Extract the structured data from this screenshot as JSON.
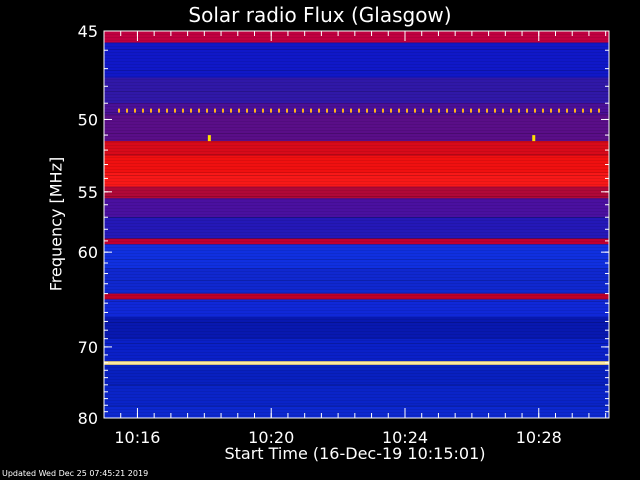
{
  "chart_data": {
    "type": "heatmap",
    "title": "Solar radio Flux (Glasgow)",
    "xlabel": "Start Time (16-Dec-19 10:15:01)",
    "ylabel": "Frequency [MHz]",
    "x_ticks": [
      "10:16",
      "10:20",
      "10:24",
      "10:28"
    ],
    "x_tick_minutes": [
      16,
      20,
      24,
      28
    ],
    "x_range_minutes": [
      15.0,
      30.1
    ],
    "y_ticks": [
      45,
      50,
      55,
      60,
      70,
      80
    ],
    "y_range": [
      45,
      80
    ],
    "y_scale": "reciprocal",
    "bands": [
      {
        "f0": 45.0,
        "f1": 45.6,
        "color": "#c00040"
      },
      {
        "f0": 45.6,
        "f1": 47.5,
        "color": "#1018c8"
      },
      {
        "f0": 47.5,
        "f1": 49.0,
        "color": "#3018a8"
      },
      {
        "f0": 49.0,
        "f1": 49.7,
        "color": "#4a1098"
      },
      {
        "f0": 49.7,
        "f1": 51.4,
        "color": "#5a0e88"
      },
      {
        "f0": 51.4,
        "f1": 52.4,
        "color": "#d80a1a"
      },
      {
        "f0": 52.4,
        "f1": 53.6,
        "color": "#f01010"
      },
      {
        "f0": 53.6,
        "f1": 54.6,
        "color": "#f81818"
      },
      {
        "f0": 54.6,
        "f1": 55.5,
        "color": "#b00838"
      },
      {
        "f0": 55.5,
        "f1": 57.0,
        "color": "#4a10a0"
      },
      {
        "f0": 57.0,
        "f1": 58.8,
        "color": "#2418b8"
      },
      {
        "f0": 58.8,
        "f1": 59.3,
        "color": "#c00030"
      },
      {
        "f0": 59.3,
        "f1": 61.5,
        "color": "#1030e0"
      },
      {
        "f0": 61.5,
        "f1": 64.0,
        "color": "#1028d0"
      },
      {
        "f0": 64.0,
        "f1": 64.6,
        "color": "#c00028"
      },
      {
        "f0": 64.6,
        "f1": 66.5,
        "color": "#1028d8"
      },
      {
        "f0": 66.5,
        "f1": 69.0,
        "color": "#0818b0"
      },
      {
        "f0": 69.0,
        "f1": 71.8,
        "color": "#0a20c8"
      },
      {
        "f0": 71.8,
        "f1": 72.3,
        "color": "#ffe8a0"
      },
      {
        "f0": 72.3,
        "f1": 75.0,
        "color": "#0820c0"
      },
      {
        "f0": 75.0,
        "f1": 78.0,
        "color": "#0a24c8"
      },
      {
        "f0": 78.0,
        "f1": 80.0,
        "color": "#0c28d0"
      }
    ],
    "interference_line_mhz": 49.45,
    "spikes": [
      {
        "minute": 18.15,
        "mhz": 51.2
      },
      {
        "minute": 27.85,
        "mhz": 51.2
      }
    ]
  },
  "footer": "Updated Wed Dec 25 07:45:21 2019"
}
